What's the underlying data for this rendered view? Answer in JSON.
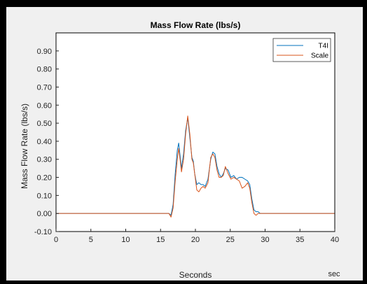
{
  "figure": {
    "title": "Mass Flow Rate (lbs/s)",
    "xlabel": "Seconds",
    "ylabel": "Mass Flow Rate (lbs/s)",
    "x_unit": "sec"
  },
  "colors": {
    "T4I": "#0072BD",
    "Scale": "#D95319",
    "frame": "#000000",
    "axes_bg": "#ffffff",
    "figure_bg": "#f0f0f0"
  },
  "chart_data": {
    "type": "line",
    "title": "Mass Flow Rate (lbs/s)",
    "xlabel": "Seconds",
    "ylabel": "Mass Flow Rate (lbs/s)",
    "xlim": [
      0,
      40
    ],
    "ylim": [
      -0.1,
      1.0
    ],
    "xticks": [
      0,
      5,
      10,
      15,
      20,
      25,
      30,
      35,
      40
    ],
    "yticks": [
      -0.1,
      0.0,
      0.1,
      0.2,
      0.3,
      0.4,
      0.5,
      0.6,
      0.7,
      0.8,
      0.9
    ],
    "ytick_labels": [
      "-0.10",
      "0.00",
      "0.10",
      "0.20",
      "0.30",
      "0.40",
      "0.50",
      "0.60",
      "0.70",
      "0.80",
      "0.90"
    ],
    "grid": false,
    "legend_position": "top-right",
    "series": [
      {
        "name": "T4I",
        "x": [
          0,
          16.2,
          16.5,
          16.8,
          17.1,
          17.4,
          17.6,
          17.8,
          18.0,
          18.3,
          18.6,
          18.9,
          19.2,
          19.5,
          19.7,
          19.9,
          20.2,
          20.5,
          20.8,
          21.1,
          21.4,
          21.8,
          22.2,
          22.5,
          22.8,
          23.1,
          23.4,
          23.7,
          24.0,
          24.3,
          24.7,
          25.1,
          25.5,
          25.9,
          26.3,
          26.7,
          27.1,
          27.5,
          27.8,
          28.1,
          28.4,
          28.7,
          29.0,
          29.3,
          29.6,
          30.0,
          40
        ],
        "y": [
          0.0,
          0.0,
          -0.01,
          0.05,
          0.22,
          0.35,
          0.39,
          0.32,
          0.25,
          0.33,
          0.46,
          0.53,
          0.42,
          0.31,
          0.29,
          0.22,
          0.16,
          0.17,
          0.16,
          0.16,
          0.15,
          0.19,
          0.3,
          0.34,
          0.33,
          0.26,
          0.22,
          0.2,
          0.22,
          0.25,
          0.24,
          0.2,
          0.21,
          0.19,
          0.2,
          0.2,
          0.19,
          0.18,
          0.16,
          0.08,
          0.02,
          0.01,
          0.01,
          0.0,
          0.0,
          0.0,
          0.0
        ]
      },
      {
        "name": "Scale",
        "x": [
          0,
          16.2,
          16.5,
          16.8,
          17.1,
          17.4,
          17.6,
          17.8,
          18.0,
          18.3,
          18.6,
          18.9,
          19.2,
          19.5,
          19.7,
          19.9,
          20.2,
          20.5,
          20.8,
          21.1,
          21.4,
          21.8,
          22.2,
          22.5,
          22.8,
          23.1,
          23.4,
          23.7,
          24.0,
          24.3,
          24.7,
          25.1,
          25.5,
          25.9,
          26.3,
          26.7,
          27.1,
          27.5,
          27.8,
          28.1,
          28.4,
          28.7,
          29.0,
          29.3,
          29.6,
          30.0,
          40
        ],
        "y": [
          0.0,
          0.0,
          -0.02,
          0.03,
          0.18,
          0.3,
          0.36,
          0.3,
          0.23,
          0.3,
          0.44,
          0.54,
          0.44,
          0.3,
          0.28,
          0.22,
          0.13,
          0.12,
          0.14,
          0.15,
          0.14,
          0.17,
          0.31,
          0.33,
          0.31,
          0.24,
          0.2,
          0.2,
          0.21,
          0.26,
          0.22,
          0.19,
          0.2,
          0.19,
          0.18,
          0.14,
          0.15,
          0.17,
          0.14,
          0.06,
          0.0,
          -0.01,
          0.0,
          0.0,
          0.0,
          0.0,
          0.0
        ]
      }
    ]
  }
}
